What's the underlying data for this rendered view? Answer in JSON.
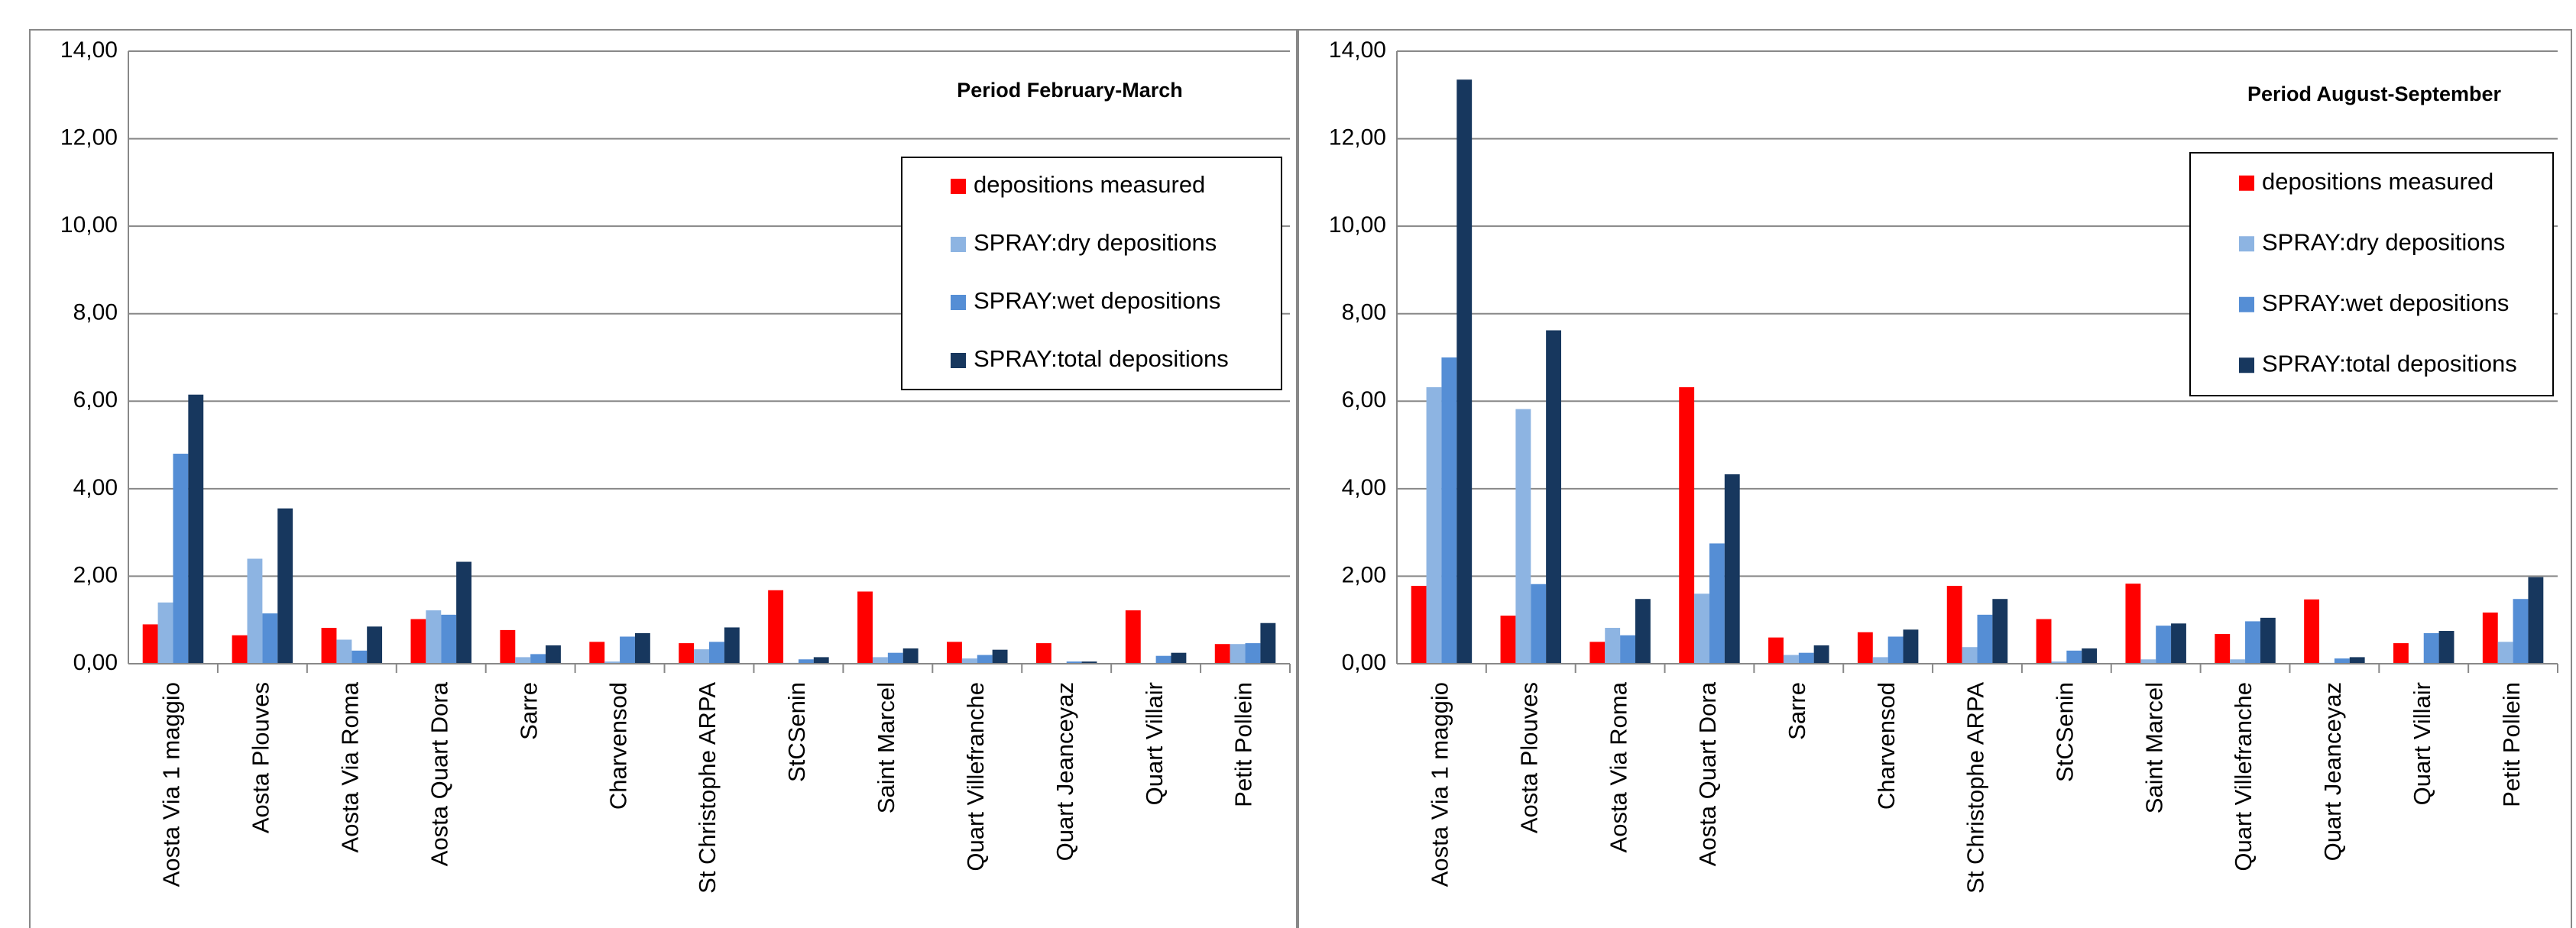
{
  "chart_data": [
    {
      "type": "bar",
      "annotation": "Period February-March",
      "categories": [
        "Aosta Via 1 maggio",
        "Aosta Plouves",
        "Aosta Via Roma",
        "Aosta Quart Dora",
        "Sarre",
        "Charvensod",
        "St Christophe ARPA",
        "StCSenin",
        "Saint Marcel",
        "Quart Villefranche",
        "Quart Jeanceyaz",
        "Quart Villair",
        "Petit Pollein"
      ],
      "series": [
        {
          "name": "depositions measured",
          "color": "#ff0000",
          "values": [
            0.9,
            0.65,
            0.82,
            1.02,
            0.77,
            0.5,
            0.47,
            1.68,
            1.65,
            0.5,
            0.47,
            1.22,
            0.45
          ]
        },
        {
          "name": "SPRAY:dry depositions",
          "color": "#8db4e2",
          "values": [
            1.4,
            2.4,
            0.55,
            1.22,
            0.15,
            0.05,
            0.33,
            0.02,
            0.15,
            0.12,
            0.0,
            0.0,
            0.45
          ]
        },
        {
          "name": "SPRAY:wet depositions",
          "color": "#558ed5",
          "values": [
            4.8,
            1.15,
            0.3,
            1.12,
            0.22,
            0.62,
            0.5,
            0.1,
            0.25,
            0.2,
            0.05,
            0.18,
            0.47
          ]
        },
        {
          "name": "SPRAY:total depositions",
          "color": "#17375e",
          "values": [
            6.15,
            3.55,
            0.85,
            2.33,
            0.42,
            0.7,
            0.83,
            0.15,
            0.35,
            0.32,
            0.05,
            0.25,
            0.93
          ]
        }
      ],
      "ylim": [
        0,
        14
      ],
      "yticks": [
        {
          "value": 0,
          "label": "0,00"
        },
        {
          "value": 2,
          "label": "2,00"
        },
        {
          "value": 4,
          "label": "4,00"
        },
        {
          "value": 6,
          "label": "6,00"
        },
        {
          "value": 8,
          "label": "8,00"
        },
        {
          "value": 10,
          "label": "10,00"
        },
        {
          "value": 12,
          "label": "12,00"
        },
        {
          "value": 14,
          "label": "14,00"
        }
      ],
      "grid": true,
      "legend": "upper right"
    },
    {
      "type": "bar",
      "annotation": "Period August-September",
      "categories": [
        "Aosta Via 1 maggio",
        "Aosta Plouves",
        "Aosta Via Roma",
        "Aosta Quart Dora",
        "Sarre",
        "Charvensod",
        "St Christophe ARPA",
        "StCSenin",
        "Saint Marcel",
        "Quart Villefranche",
        "Quart Jeanceyaz",
        "Quart Villair",
        "Petit Pollein"
      ],
      "series": [
        {
          "name": "depositions measured",
          "color": "#ff0000",
          "values": [
            1.78,
            1.1,
            0.5,
            6.32,
            0.6,
            0.72,
            1.78,
            1.02,
            1.83,
            0.68,
            1.47,
            0.47,
            1.17
          ]
        },
        {
          "name": "SPRAY:dry depositions",
          "color": "#8db4e2",
          "values": [
            6.32,
            5.82,
            0.82,
            1.6,
            0.2,
            0.15,
            0.38,
            0.05,
            0.1,
            0.1,
            0.02,
            0.02,
            0.5
          ]
        },
        {
          "name": "SPRAY:wet depositions",
          "color": "#558ed5",
          "values": [
            7.0,
            1.82,
            0.65,
            2.75,
            0.25,
            0.62,
            1.12,
            0.3,
            0.87,
            0.97,
            0.12,
            0.7,
            1.48
          ]
        },
        {
          "name": "SPRAY:total depositions",
          "color": "#17375e",
          "values": [
            13.35,
            7.62,
            1.48,
            4.33,
            0.42,
            0.78,
            1.48,
            0.35,
            0.92,
            1.05,
            0.15,
            0.75,
            1.98
          ]
        }
      ],
      "ylim": [
        0,
        14
      ],
      "yticks": [
        {
          "value": 0,
          "label": "0,00"
        },
        {
          "value": 2,
          "label": "2,00"
        },
        {
          "value": 4,
          "label": "4,00"
        },
        {
          "value": 6,
          "label": "6,00"
        },
        {
          "value": 8,
          "label": "8,00"
        },
        {
          "value": 10,
          "label": "10,00"
        },
        {
          "value": 12,
          "label": "12,00"
        },
        {
          "value": 14,
          "label": "14,00"
        }
      ],
      "grid": true,
      "legend": "upper right"
    }
  ]
}
